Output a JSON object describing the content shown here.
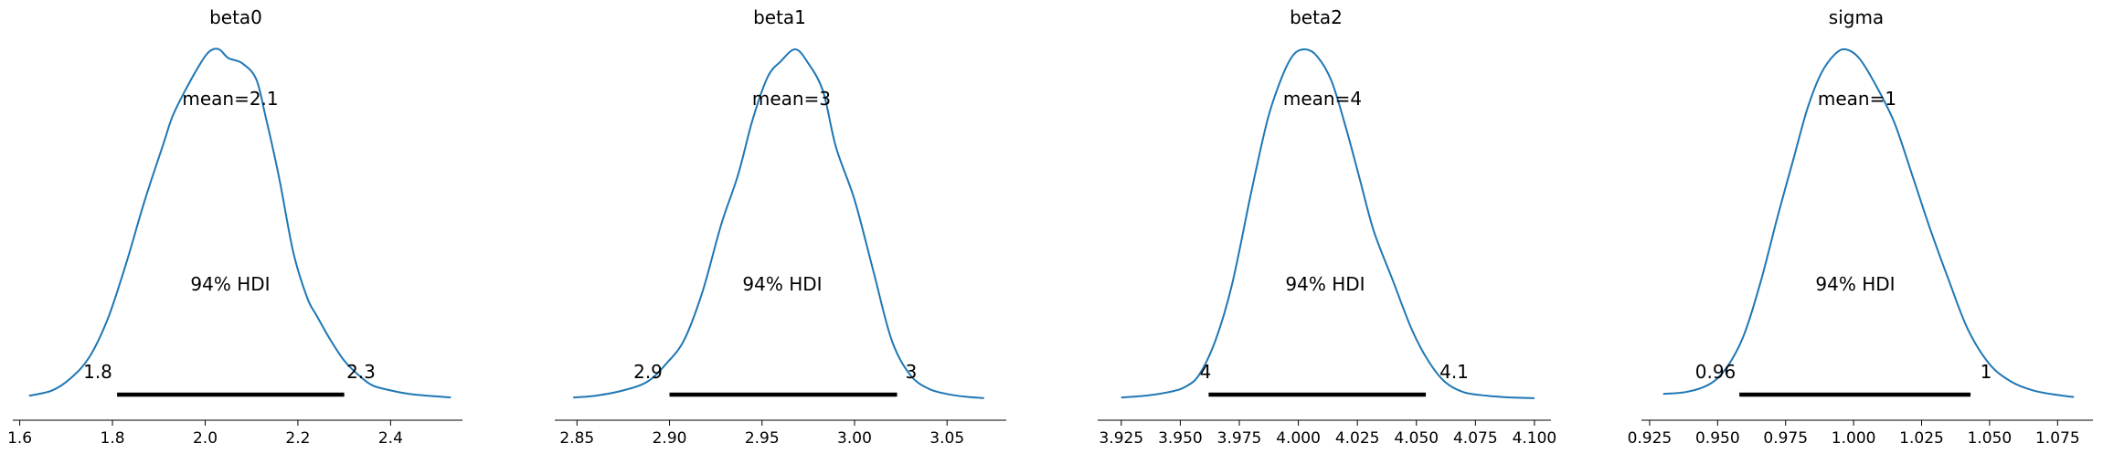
{
  "colors": {
    "density_line": "#1f77b4",
    "hdi_bar": "#000000",
    "background": "#ffffff"
  },
  "chart_data": [
    {
      "type": "line",
      "title": "beta0",
      "mean_label": "mean=2.1",
      "hdi_label": "94% HDI",
      "hdi": [
        1.81,
        2.3
      ],
      "hdi_labels": [
        "1.8",
        "2.3"
      ],
      "xlim": [
        1.585,
        2.555
      ],
      "xticks": [
        1.6,
        1.8,
        2.0,
        2.2,
        2.4
      ],
      "xtick_labels": [
        "1.6",
        "1.8",
        "2.0",
        "2.2",
        "2.4"
      ],
      "ylim": [
        0,
        1.06
      ],
      "density": {
        "x": [
          1.62,
          1.67,
          1.71,
          1.75,
          1.79,
          1.83,
          1.87,
          1.91,
          1.93,
          1.96,
          1.99,
          2.01,
          2.03,
          2.05,
          2.08,
          2.11,
          2.13,
          2.16,
          2.19,
          2.22,
          2.24,
          2.27,
          2.3,
          2.33,
          2.36,
          2.4,
          2.44,
          2.48,
          2.53
        ],
        "y": [
          0.01,
          0.025,
          0.06,
          0.12,
          0.23,
          0.39,
          0.57,
          0.73,
          0.81,
          0.89,
          0.96,
          0.995,
          1.0,
          0.975,
          0.96,
          0.915,
          0.81,
          0.63,
          0.42,
          0.29,
          0.24,
          0.17,
          0.11,
          0.07,
          0.04,
          0.025,
          0.015,
          0.01,
          0.005
        ]
      }
    },
    {
      "type": "line",
      "title": "beta1",
      "mean_label": "mean=3",
      "hdi_label": "94% HDI",
      "hdi": [
        2.9,
        3.023
      ],
      "hdi_labels": [
        "2.9",
        "3"
      ],
      "xlim": [
        2.838,
        3.082
      ],
      "xticks": [
        2.85,
        2.9,
        2.95,
        3.0,
        3.05
      ],
      "xtick_labels": [
        "2.85",
        "2.90",
        "2.95",
        "3.00",
        "3.05"
      ],
      "ylim": [
        0,
        1.06
      ],
      "density": {
        "x": [
          2.848,
          2.86,
          2.875,
          2.888,
          2.898,
          2.908,
          2.918,
          2.928,
          2.937,
          2.945,
          2.953,
          2.96,
          2.968,
          2.975,
          2.983,
          2.99,
          3.0,
          3.01,
          3.02,
          3.03,
          3.04,
          3.05,
          3.06,
          3.07
        ],
        "y": [
          0.005,
          0.01,
          0.025,
          0.05,
          0.1,
          0.17,
          0.31,
          0.5,
          0.64,
          0.8,
          0.92,
          0.965,
          1.0,
          0.96,
          0.88,
          0.72,
          0.57,
          0.37,
          0.17,
          0.07,
          0.03,
          0.015,
          0.007,
          0.003
        ]
      }
    },
    {
      "type": "line",
      "title": "beta2",
      "mean_label": "mean=4",
      "hdi_label": "94% HDI",
      "hdi": [
        3.962,
        4.054
      ],
      "hdi_labels": [
        "4",
        "4.1"
      ],
      "xlim": [
        3.915,
        4.107
      ],
      "xticks": [
        3.925,
        3.95,
        3.975,
        4.0,
        4.025,
        4.05,
        4.075,
        4.1
      ],
      "xtick_labels": [
        "3.925",
        "3.950",
        "3.975",
        "4.000",
        "4.025",
        "4.050",
        "4.075",
        "4.100"
      ],
      "ylim": [
        0,
        1.06
      ],
      "density": {
        "x": [
          3.925,
          3.935,
          3.945,
          3.952,
          3.958,
          3.965,
          3.972,
          3.98,
          3.987,
          3.993,
          3.998,
          4.003,
          4.008,
          4.014,
          4.02,
          4.026,
          4.032,
          4.04,
          4.048,
          4.055,
          4.062,
          4.07,
          4.08,
          4.09,
          4.1
        ],
        "y": [
          0.005,
          0.01,
          0.02,
          0.035,
          0.07,
          0.17,
          0.33,
          0.59,
          0.8,
          0.92,
          0.985,
          1.0,
          0.98,
          0.91,
          0.78,
          0.63,
          0.48,
          0.34,
          0.2,
          0.11,
          0.05,
          0.02,
          0.01,
          0.005,
          0.003
        ]
      }
    },
    {
      "type": "line",
      "title": "sigma",
      "mean_label": "mean=1",
      "hdi_label": "94% HDI",
      "hdi": [
        0.958,
        1.043
      ],
      "hdi_labels": [
        "0.96",
        "1"
      ],
      "xlim": [
        0.922,
        1.088
      ],
      "xticks": [
        0.925,
        0.95,
        0.975,
        1.0,
        1.025,
        1.05,
        1.075
      ],
      "xtick_labels": [
        "0.925",
        "0.950",
        "0.975",
        "1.000",
        "1.025",
        "1.050",
        "1.075"
      ],
      "ylim": [
        0,
        1.06
      ],
      "density": {
        "x": [
          0.93,
          0.938,
          0.945,
          0.95,
          0.955,
          0.96,
          0.966,
          0.972,
          0.978,
          0.983,
          0.988,
          0.993,
          0.997,
          1.002,
          1.008,
          1.015,
          1.022,
          1.028,
          1.035,
          1.042,
          1.05,
          1.058,
          1.066,
          1.075,
          1.081
        ],
        "y": [
          0.015,
          0.02,
          0.035,
          0.06,
          0.11,
          0.19,
          0.34,
          0.52,
          0.69,
          0.83,
          0.93,
          0.985,
          1.0,
          0.975,
          0.9,
          0.79,
          0.63,
          0.49,
          0.34,
          0.2,
          0.1,
          0.05,
          0.025,
          0.012,
          0.006
        ]
      }
    }
  ]
}
